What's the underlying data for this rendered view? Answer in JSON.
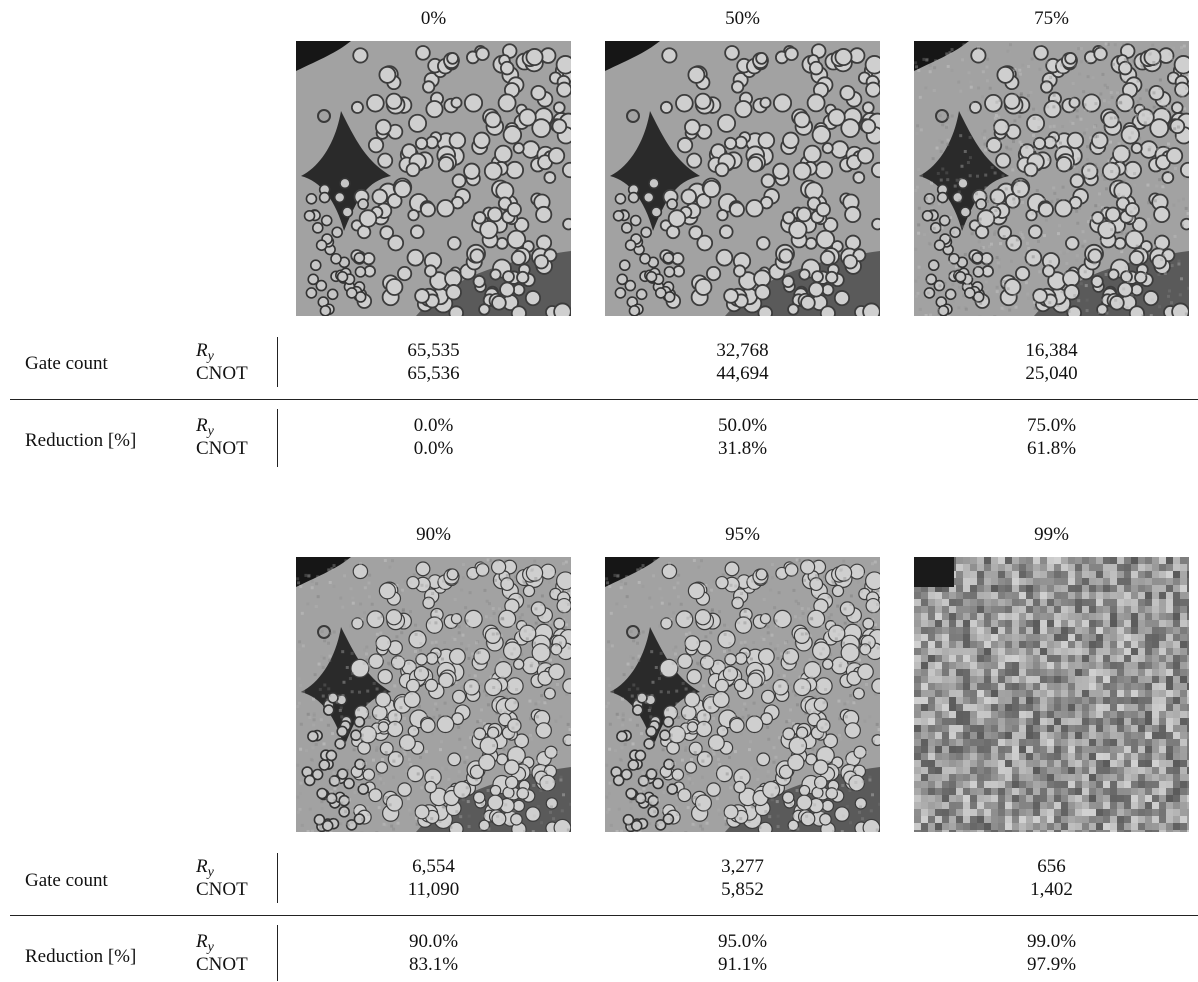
{
  "panels": [
    {
      "columns": [
        {
          "header": "0%",
          "ry": "65,535",
          "cnot": "65,536",
          "red_ry": "0.0%",
          "red_cnot": "0.0%"
        },
        {
          "header": "50%",
          "ry": "32,768",
          "cnot": "44,694",
          "red_ry": "50.0%",
          "red_cnot": "31.8%"
        },
        {
          "header": "75%",
          "ry": "16,384",
          "cnot": "25,040",
          "red_ry": "75.0%",
          "red_cnot": "61.8%"
        }
      ]
    },
    {
      "columns": [
        {
          "header": "90%",
          "ry": "6,554",
          "cnot": "11,090",
          "red_ry": "90.0%",
          "red_cnot": "83.1%"
        },
        {
          "header": "95%",
          "ry": "3,277",
          "cnot": "5,852",
          "red_ry": "95.0%",
          "red_cnot": "91.1%"
        },
        {
          "header": "99%",
          "ry": "656",
          "cnot": "1,402",
          "red_ry": "99.0%",
          "red_cnot": "97.9%"
        }
      ]
    }
  ],
  "labels": {
    "gate_count": "Gate count",
    "reduction": "Reduction [%]",
    "ry_base": "R",
    "ry_sub": "y",
    "cnot": "CNOT"
  }
}
